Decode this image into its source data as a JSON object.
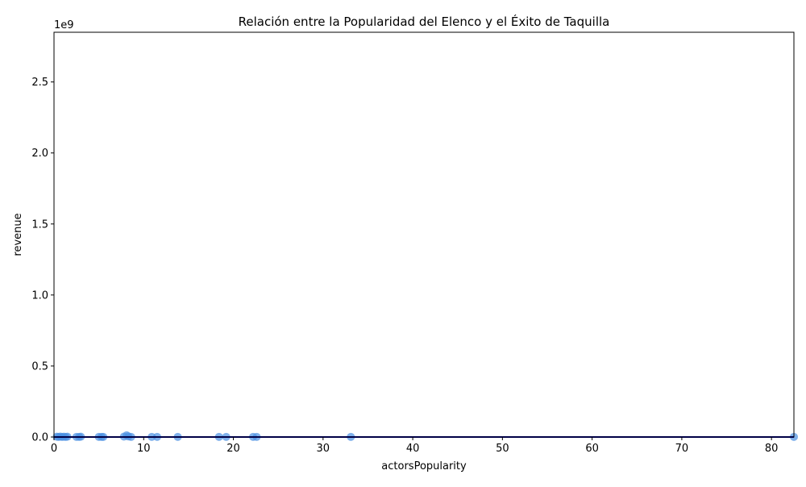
{
  "chart_data": {
    "type": "scatter",
    "title": "Relación entre la Popularidad del Elenco y el Éxito de Taquilla",
    "xlabel": "actorsPopularity",
    "ylabel": "revenue",
    "y_scale_label": "1e9",
    "xlim": [
      0,
      82.5
    ],
    "ylim": [
      0,
      2.85
    ],
    "x_ticks": [
      0,
      10,
      20,
      30,
      40,
      50,
      60,
      70,
      80
    ],
    "x_tick_labels": [
      "0",
      "10",
      "20",
      "30",
      "40",
      "50",
      "60",
      "70",
      "80"
    ],
    "y_ticks": [
      0,
      0.5,
      1.0,
      1.5,
      2.0,
      2.5
    ],
    "y_tick_labels": [
      "0.0",
      "0.5",
      "1.0",
      "1.5",
      "2.0",
      "2.5"
    ],
    "grid": false,
    "point_color": "#4a90e2",
    "trend_color": "#00008b",
    "series": [
      {
        "x": [
          0.3,
          0.5,
          0.7,
          0.9,
          1.1,
          1.3,
          1.5,
          2.5,
          2.8,
          3.0,
          5.0,
          5.3,
          5.5,
          7.8,
          8.1,
          8.3,
          8.6,
          10.9,
          11.5,
          13.8,
          18.4,
          19.2,
          22.2,
          22.6,
          33.1,
          82.5
        ],
        "y": [
          0.002,
          0.001,
          0.003,
          0.001,
          0.002,
          0.001,
          0.002,
          0.001,
          0.001,
          0.002,
          0.001,
          0.001,
          0.001,
          0.003,
          0.012,
          0.004,
          0.001,
          0.001,
          0.001,
          0.001,
          0.001,
          0.001,
          0.001,
          0.001,
          0.001,
          0.001
        ]
      }
    ],
    "trend_line": {
      "x": [
        0,
        82.5
      ],
      "y": [
        0.0,
        0.0
      ]
    }
  }
}
